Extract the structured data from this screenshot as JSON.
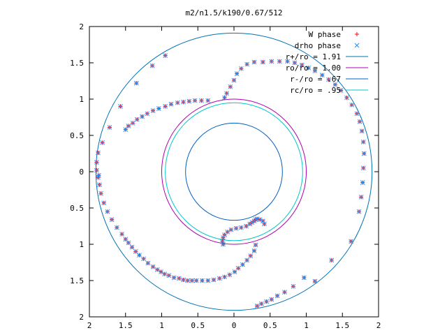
{
  "chart_data": {
    "type": "scatter",
    "title": "m2/n1.5/k190/0.67/512",
    "xlabel": "",
    "ylabel": "",
    "xlim": [
      -2,
      2
    ],
    "ylim": [
      -2,
      2
    ],
    "x_tick_values": [
      -2,
      -1.5,
      -1,
      -0.5,
      0,
      0.5,
      1,
      1.5,
      2
    ],
    "x_tick_labels": [
      "2",
      "1.5",
      "1",
      "0.5",
      "0",
      "0.5",
      "1",
      "1.5",
      "2"
    ],
    "y_tick_values": [
      2,
      1.5,
      1,
      0.5,
      0,
      -0.5,
      -1,
      -1.5,
      -2
    ],
    "y_tick_labels": [
      "2",
      "1.5",
      "1",
      "0.5",
      "0",
      "0.5",
      "1",
      "1.5",
      "2"
    ],
    "grid": false,
    "legend_position": "top-right",
    "series": [
      {
        "name": "W phase",
        "marker": "+",
        "color": "#ff0000",
        "x": [
          -1.87,
          -1.86,
          -1.84,
          -1.8,
          -1.75,
          -1.69,
          -1.62,
          -1.55,
          -1.5,
          -1.46,
          -1.41,
          -1.36,
          -1.31,
          -1.25,
          -1.19,
          -1.12,
          -1.06,
          -1.01,
          -0.96,
          -0.9,
          -0.83,
          -0.76,
          -0.7,
          -0.64,
          -0.58,
          -0.52,
          -0.44,
          -0.36,
          -0.28,
          -0.2,
          -0.13,
          -0.06,
          0.01,
          0.06,
          0.12,
          0.18,
          0.23,
          0.28,
          0.3,
          0.32,
          0.38,
          0.45,
          0.52,
          0.6,
          0.7,
          0.82,
          0.97,
          1.12,
          1.35,
          1.62,
          1.73,
          1.76,
          1.78,
          1.79,
          1.8,
          1.79,
          1.77,
          1.74,
          1.7,
          1.63,
          1.56,
          1.48,
          1.4,
          1.31,
          1.22,
          1.12,
          1.03,
          0.94,
          0.84,
          0.74,
          0.63,
          0.52,
          0.4,
          0.28,
          0.18,
          0.1,
          0.04,
          0.0,
          -0.05,
          -0.1,
          -0.13,
          -0.15,
          -0.16,
          -0.15,
          -0.13,
          -0.09,
          -0.04,
          0.03,
          0.1,
          0.17,
          0.22,
          0.25,
          0.28,
          0.3,
          0.32,
          0.36,
          0.4,
          0.42,
          -0.95,
          -1.13,
          -1.35,
          -1.57,
          -1.72,
          -1.82,
          -1.88,
          -1.9,
          -1.9,
          -1.88,
          -0.36,
          -0.45,
          -0.54,
          -0.62,
          -0.7,
          -0.78,
          -0.87,
          -0.95,
          -1.04,
          -1.12,
          -1.2,
          -1.27,
          -1.34,
          -1.4,
          -1.46,
          -1.5
        ],
        "y": [
          -0.05,
          -0.18,
          -0.3,
          -0.43,
          -0.55,
          -0.66,
          -0.77,
          -0.86,
          -0.93,
          -0.98,
          -1.04,
          -1.1,
          -1.15,
          -1.2,
          -1.26,
          -1.31,
          -1.35,
          -1.38,
          -1.41,
          -1.43,
          -1.46,
          -1.47,
          -1.49,
          -1.5,
          -1.5,
          -1.5,
          -1.5,
          -1.5,
          -1.49,
          -1.47,
          -1.45,
          -1.42,
          -1.38,
          -1.33,
          -1.28,
          -1.22,
          -1.16,
          -1.09,
          -1.01,
          -1.85,
          -1.82,
          -1.79,
          -1.76,
          -1.71,
          -1.66,
          -1.58,
          -1.46,
          -1.51,
          -1.22,
          -0.96,
          -0.55,
          -0.35,
          -0.15,
          0.05,
          0.25,
          0.41,
          0.56,
          0.69,
          0.8,
          0.92,
          1.02,
          1.12,
          1.2,
          1.27,
          1.33,
          1.39,
          1.43,
          1.47,
          1.5,
          1.52,
          1.52,
          1.52,
          1.51,
          1.51,
          1.48,
          1.42,
          1.35,
          1.26,
          1.17,
          1.08,
          1.02,
          -1.0,
          -0.96,
          -0.91,
          -0.87,
          -0.83,
          -0.8,
          -0.78,
          -0.77,
          -0.75,
          -0.72,
          -0.7,
          -0.68,
          -0.66,
          -0.65,
          -0.66,
          -0.68,
          -0.72,
          1.6,
          1.46,
          1.22,
          0.9,
          0.61,
          0.4,
          0.26,
          0.13,
          0.02,
          -0.08,
          0.98,
          0.98,
          0.98,
          0.97,
          0.96,
          0.95,
          0.93,
          0.9,
          0.87,
          0.84,
          0.8,
          0.76,
          0.72,
          0.67,
          0.63,
          0.58
        ]
      },
      {
        "name": "drho phase",
        "marker": "x",
        "color": "#1e90ff",
        "x": [
          -1.87,
          -1.86,
          -1.84,
          -1.8,
          -1.75,
          -1.69,
          -1.62,
          -1.55,
          -1.5,
          -1.46,
          -1.41,
          -1.36,
          -1.31,
          -1.25,
          -1.19,
          -1.12,
          -1.06,
          -1.01,
          -0.96,
          -0.9,
          -0.83,
          -0.76,
          -0.7,
          -0.64,
          -0.58,
          -0.52,
          -0.44,
          -0.36,
          -0.28,
          -0.2,
          -0.13,
          -0.06,
          0.01,
          0.06,
          0.12,
          0.18,
          0.23,
          0.28,
          0.3,
          0.32,
          0.38,
          0.45,
          0.52,
          0.6,
          0.7,
          0.82,
          0.97,
          1.12,
          1.35,
          1.62,
          1.73,
          1.76,
          1.78,
          1.79,
          1.8,
          1.79,
          1.77,
          1.74,
          1.7,
          1.63,
          1.56,
          1.48,
          1.4,
          1.31,
          1.22,
          1.12,
          1.03,
          0.94,
          0.84,
          0.74,
          0.63,
          0.52,
          0.4,
          0.28,
          0.18,
          0.1,
          0.04,
          0.0,
          -0.05,
          -0.1,
          -0.13,
          -0.15,
          -0.16,
          -0.15,
          -0.13,
          -0.09,
          -0.04,
          0.03,
          0.1,
          0.17,
          0.22,
          0.25,
          0.28,
          0.3,
          0.32,
          0.36,
          0.4,
          0.42,
          -0.95,
          -1.13,
          -1.35,
          -1.57,
          -1.72,
          -1.82,
          -1.88,
          -1.9,
          -1.9,
          -1.88,
          -0.36,
          -0.45,
          -0.54,
          -0.62,
          -0.7,
          -0.78,
          -0.87,
          -0.95,
          -1.04,
          -1.12,
          -1.2,
          -1.27,
          -1.34,
          -1.4,
          -1.46,
          -1.5
        ],
        "y": [
          -0.05,
          -0.18,
          -0.3,
          -0.43,
          -0.55,
          -0.66,
          -0.77,
          -0.86,
          -0.93,
          -0.98,
          -1.04,
          -1.1,
          -1.15,
          -1.2,
          -1.26,
          -1.31,
          -1.35,
          -1.38,
          -1.41,
          -1.43,
          -1.46,
          -1.47,
          -1.49,
          -1.5,
          -1.5,
          -1.5,
          -1.5,
          -1.5,
          -1.49,
          -1.47,
          -1.45,
          -1.42,
          -1.38,
          -1.33,
          -1.28,
          -1.22,
          -1.16,
          -1.09,
          -1.01,
          -1.85,
          -1.82,
          -1.79,
          -1.76,
          -1.71,
          -1.66,
          -1.58,
          -1.46,
          -1.51,
          -1.22,
          -0.96,
          -0.55,
          -0.35,
          -0.15,
          0.05,
          0.25,
          0.41,
          0.56,
          0.69,
          0.8,
          0.92,
          1.02,
          1.12,
          1.2,
          1.27,
          1.33,
          1.39,
          1.43,
          1.47,
          1.5,
          1.52,
          1.52,
          1.52,
          1.51,
          1.51,
          1.48,
          1.42,
          1.35,
          1.26,
          1.17,
          1.08,
          1.02,
          -1.0,
          -0.96,
          -0.91,
          -0.87,
          -0.83,
          -0.8,
          -0.78,
          -0.77,
          -0.75,
          -0.72,
          -0.7,
          -0.68,
          -0.66,
          -0.65,
          -0.66,
          -0.68,
          -0.72,
          1.6,
          1.46,
          1.22,
          0.9,
          0.61,
          0.4,
          0.26,
          0.13,
          0.02,
          -0.08,
          0.98,
          0.98,
          0.98,
          0.97,
          0.96,
          0.95,
          0.93,
          0.9,
          0.87,
          0.84,
          0.8,
          0.76,
          0.72,
          0.67,
          0.63,
          0.58
        ]
      },
      {
        "name": "r+/ro = 1.91",
        "type": "circle",
        "radius": 1.91,
        "color": "#0072b2"
      },
      {
        "name": "ro/ro = 1.00",
        "type": "circle",
        "radius": 1.0,
        "color": "#b000b0"
      },
      {
        "name": "r-/ro = .67",
        "type": "circle",
        "radius": 0.67,
        "color": "#0060c0"
      },
      {
        "name": "rc/ro = .95",
        "type": "circle",
        "radius": 0.95,
        "color": "#00c8c8"
      }
    ]
  }
}
